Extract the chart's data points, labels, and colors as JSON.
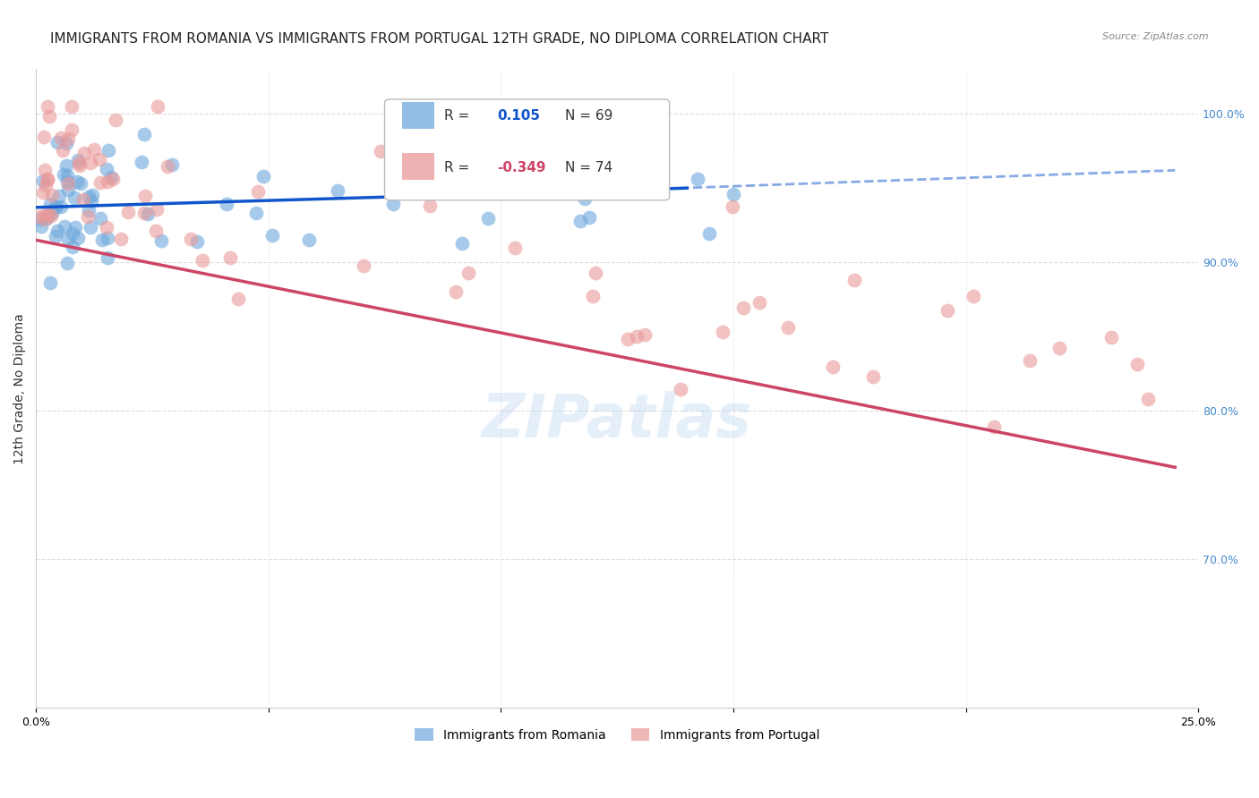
{
  "title": "IMMIGRANTS FROM ROMANIA VS IMMIGRANTS FROM PORTUGAL 12TH GRADE, NO DIPLOMA CORRELATION CHART",
  "source": "Source: ZipAtlas.com",
  "ylabel": "12th Grade, No Diploma",
  "xlim": [
    0.0,
    0.25
  ],
  "ylim": [
    0.6,
    1.03
  ],
  "y_tick_labels_right": [
    "100.0%",
    "90.0%",
    "80.0%",
    "70.0%"
  ],
  "y_tick_positions_right": [
    1.0,
    0.9,
    0.8,
    0.7
  ],
  "romania_color": "#6fa8dc",
  "portugal_color": "#ea9999",
  "romania_R": 0.105,
  "romania_N": 69,
  "portugal_R": -0.349,
  "portugal_N": 74,
  "romania_line_color": "#1155cc",
  "portugal_line_color": "#cc4466",
  "watermark": "ZIPatlas",
  "background_color": "#ffffff",
  "grid_color": "#dddddd",
  "title_fontsize": 11,
  "axis_label_fontsize": 10,
  "tick_fontsize": 9,
  "legend_fontsize": 11
}
